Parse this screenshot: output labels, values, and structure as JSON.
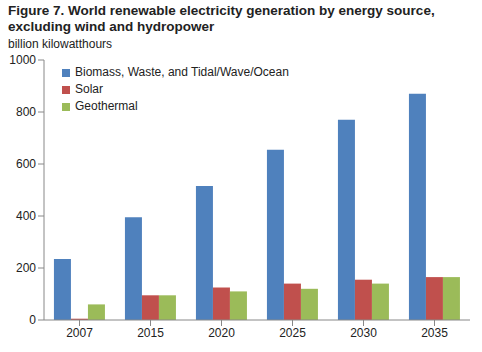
{
  "chart_data": {
    "type": "bar",
    "title": "Figure 7. World renewable electricity generation by energy source, excluding wind and hydropower",
    "subtitle": "billion kilowatthours",
    "categories": [
      "2007",
      "2015",
      "2020",
      "2025",
      "2030",
      "2035"
    ],
    "series": [
      {
        "name": "Biomass, Waste, and Tidal/Wave/Ocean",
        "color": "#4f81bd",
        "values": [
          235,
          395,
          515,
          655,
          770,
          870
        ]
      },
      {
        "name": "Solar",
        "color": "#c0504d",
        "values": [
          5,
          95,
          125,
          140,
          155,
          165
        ]
      },
      {
        "name": "Geothermal",
        "color": "#9bbb59",
        "values": [
          60,
          95,
          110,
          120,
          140,
          165
        ]
      }
    ],
    "ylim": [
      0,
      1000
    ],
    "yticks": [
      0,
      200,
      400,
      600,
      800,
      1000
    ],
    "grid": false,
    "legend": "upper left"
  }
}
